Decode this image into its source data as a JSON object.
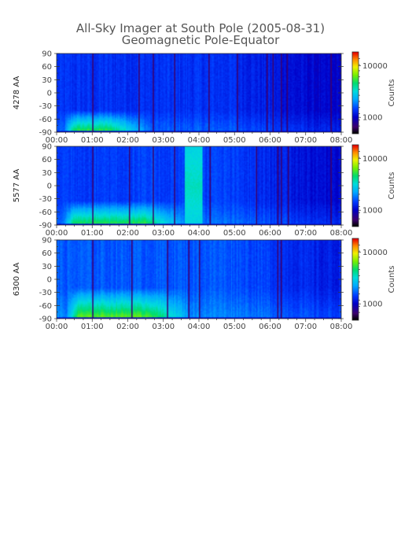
{
  "figure": {
    "title_line1": "All-Sky Imager at South Pole (2005-08-31)",
    "title_line2": "Geomagnetic Pole-Equator"
  },
  "chart_data": [
    {
      "type": "heatmap",
      "ylabel": "4278 AA",
      "x_ticks": [
        "00:00",
        "01:00",
        "02:00",
        "03:00",
        "04:00",
        "05:00",
        "06:00",
        "07:00",
        "08:00"
      ],
      "y_ticks": [
        90,
        60,
        30,
        0,
        -30,
        -60,
        -90
      ],
      "ylim": [
        -90,
        90
      ],
      "colorbar": {
        "label": "Counts",
        "ticks": [
          "10000",
          "1000"
        ],
        "scale": "log",
        "colormap": "rainbow"
      },
      "bright_band": {
        "y_range": [
          -90,
          -60
        ],
        "peak_hours": [
          0.5,
          1.5
        ],
        "peak_level": 0.62
      },
      "background_level": 0.28,
      "dark_streak_hours": [
        1.0,
        2.3,
        2.7,
        3.3,
        4.25,
        5.05,
        5.9,
        6.05,
        6.3,
        6.45,
        7.7
      ]
    },
    {
      "type": "heatmap",
      "ylabel": "5577 AA",
      "x_ticks": [
        "00:00",
        "01:00",
        "02:00",
        "03:00",
        "04:00",
        "05:00",
        "06:00",
        "07:00",
        "08:00"
      ],
      "y_ticks": [
        90,
        60,
        30,
        0,
        -30,
        -60,
        -90
      ],
      "ylim": [
        -90,
        90
      ],
      "colorbar": {
        "label": "Counts",
        "ticks": [
          "10000",
          "1000"
        ],
        "scale": "log",
        "colormap": "rainbow"
      },
      "bright_band": {
        "y_range": [
          -90,
          -55
        ],
        "peak_hours": [
          0.5,
          2.5
        ],
        "peak_level": 0.62
      },
      "bright_column": {
        "hours": [
          3.6,
          4.1
        ],
        "level": 0.55
      },
      "background_level": 0.3,
      "dark_streak_hours": [
        1.0,
        2.05,
        2.7,
        3.3,
        4.3,
        5.6,
        6.2,
        6.3,
        6.5,
        7.7
      ]
    },
    {
      "type": "heatmap",
      "ylabel": "6300 AA",
      "x_ticks": [
        "00:00",
        "01:00",
        "02:00",
        "03:00",
        "04:00",
        "05:00",
        "06:00",
        "07:00",
        "08:00"
      ],
      "y_ticks": [
        90,
        60,
        30,
        0,
        -30,
        -60,
        -90
      ],
      "ylim": [
        -90,
        90
      ],
      "colorbar": {
        "label": "Counts",
        "ticks": [
          "10000",
          "1000"
        ],
        "scale": "log",
        "colormap": "rainbow"
      },
      "bright_band": {
        "y_range": [
          -90,
          -40
        ],
        "peak_hours": [
          0.6,
          2.6
        ],
        "peak_level": 0.66
      },
      "background_level": 0.33,
      "dark_streak_hours": [
        1.0,
        2.1,
        3.1,
        3.7,
        4.0,
        6.2,
        6.3
      ]
    }
  ]
}
